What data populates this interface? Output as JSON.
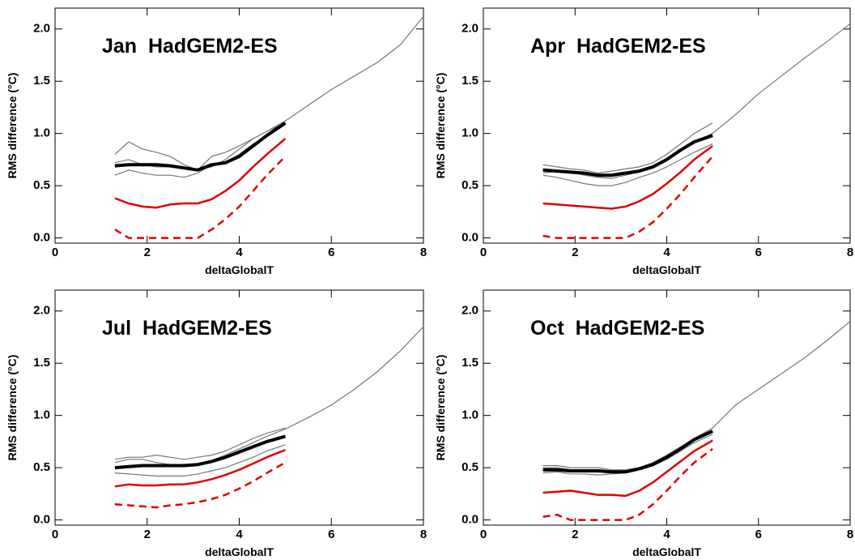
{
  "chart_data": [
    {
      "type": "line",
      "title": "Jan  HadGEM2-ES",
      "xlabel": "deltaGlobalT",
      "ylabel": "RMS difference (°C)",
      "xlim": [
        0,
        8
      ],
      "ylim": [
        -0.05,
        2.2
      ],
      "xticks": [
        0,
        2,
        4,
        6,
        8
      ],
      "yticks": [
        {
          "value": 0,
          "label": "0.0"
        },
        0.5,
        {
          "value": 1,
          "label": "1.0"
        },
        1.5,
        {
          "value": 2,
          "label": "2.0"
        }
      ],
      "x": [
        1.3,
        1.6,
        1.9,
        2.2,
        2.5,
        2.8,
        3.1,
        3.4,
        3.7,
        4.0,
        4.3,
        4.6,
        5.0,
        5.5,
        6.0,
        6.5,
        7.0,
        7.5,
        8.0
      ],
      "series": [
        {
          "color": "#777777",
          "linewidth": 1.2,
          "values": [
            0.72,
            0.75,
            0.7,
            0.68,
            0.68,
            0.66,
            0.65,
            0.68,
            0.75,
            0.85,
            0.95,
            1.02,
            1.12,
            1.27,
            1.42,
            1.55,
            1.68,
            1.85,
            2.12
          ]
        },
        {
          "color": "#777777",
          "linewidth": 1.2,
          "values": [
            0.8,
            0.92,
            0.85,
            0.82,
            0.78,
            0.7,
            0.65,
            0.78,
            0.82,
            0.88,
            0.95,
            1.02,
            1.1,
            null,
            null,
            null,
            null,
            null,
            null
          ]
        },
        {
          "color": "#777777",
          "linewidth": 1.2,
          "values": [
            0.6,
            0.65,
            0.62,
            0.6,
            0.6,
            0.58,
            0.62,
            0.7,
            0.72,
            0.8,
            0.9,
            0.98,
            1.1,
            null,
            null,
            null,
            null,
            null,
            null
          ]
        },
        {
          "color": "#000000",
          "linewidth": 4,
          "values": [
            0.69,
            0.7,
            0.7,
            0.7,
            0.69,
            0.67,
            0.65,
            0.7,
            0.72,
            0.78,
            0.88,
            0.98,
            1.1,
            null,
            null,
            null,
            null,
            null,
            null
          ]
        },
        {
          "color": "#e00000",
          "linewidth": 2.5,
          "values": [
            0.38,
            0.33,
            0.3,
            0.29,
            0.32,
            0.33,
            0.33,
            0.37,
            0.45,
            0.55,
            0.68,
            0.8,
            0.95,
            null,
            null,
            null,
            null,
            null,
            null
          ]
        },
        {
          "color": "#e00000",
          "linewidth": 2.5,
          "dashed": true,
          "values": [
            0.08,
            0,
            0,
            0,
            0,
            0,
            0,
            0.08,
            0.18,
            0.3,
            0.45,
            0.6,
            0.78,
            null,
            null,
            null,
            null,
            null,
            null
          ]
        }
      ]
    },
    {
      "type": "line",
      "title": "Apr  HadGEM2-ES",
      "xlabel": "deltaGlobalT",
      "ylabel": "RMS difference (°C)",
      "xlim": [
        0,
        8
      ],
      "ylim": [
        -0.05,
        2.2
      ],
      "xticks": [
        0,
        2,
        4,
        6,
        8
      ],
      "yticks": [
        {
          "value": 0,
          "label": "0.0"
        },
        0.5,
        {
          "value": 1,
          "label": "1.0"
        },
        1.5,
        {
          "value": 2,
          "label": "2.0"
        }
      ],
      "x": [
        1.3,
        1.6,
        1.9,
        2.2,
        2.5,
        2.8,
        3.1,
        3.4,
        3.7,
        4.0,
        4.3,
        4.6,
        5.0,
        5.5,
        6.0,
        6.5,
        7.0,
        7.5,
        8.0
      ],
      "series": [
        {
          "color": "#777777",
          "linewidth": 1.2,
          "values": [
            0.62,
            0.64,
            0.63,
            0.6,
            0.58,
            0.57,
            0.6,
            0.63,
            0.68,
            0.75,
            0.85,
            0.92,
            1.0,
            1.18,
            1.38,
            1.55,
            1.72,
            1.88,
            2.05
          ]
        },
        {
          "color": "#777777",
          "linewidth": 1.2,
          "values": [
            0.7,
            0.68,
            0.66,
            0.65,
            0.62,
            0.64,
            0.66,
            0.68,
            0.72,
            0.8,
            0.9,
            1.0,
            1.1,
            null,
            null,
            null,
            null,
            null,
            null
          ]
        },
        {
          "color": "#777777",
          "linewidth": 1.2,
          "values": [
            0.6,
            0.58,
            0.55,
            0.52,
            0.5,
            0.5,
            0.53,
            0.58,
            0.62,
            0.68,
            0.75,
            0.82,
            0.9,
            null,
            null,
            null,
            null,
            null,
            null
          ]
        },
        {
          "color": "#000000",
          "linewidth": 4,
          "values": [
            0.65,
            0.64,
            0.63,
            0.62,
            0.6,
            0.6,
            0.62,
            0.64,
            0.68,
            0.75,
            0.84,
            0.92,
            0.98,
            null,
            null,
            null,
            null,
            null,
            null
          ]
        },
        {
          "color": "#e00000",
          "linewidth": 2.5,
          "values": [
            0.33,
            0.32,
            0.31,
            0.3,
            0.29,
            0.28,
            0.3,
            0.35,
            0.42,
            0.52,
            0.63,
            0.75,
            0.88,
            null,
            null,
            null,
            null,
            null,
            null
          ]
        },
        {
          "color": "#e00000",
          "linewidth": 2.5,
          "dashed": true,
          "values": [
            0.02,
            0,
            0,
            0,
            0,
            0,
            0,
            0.06,
            0.15,
            0.28,
            0.42,
            0.58,
            0.78,
            null,
            null,
            null,
            null,
            null,
            null
          ]
        }
      ]
    },
    {
      "type": "line",
      "title": "Jul  HadGEM2-ES",
      "xlabel": "deltaGlobalT",
      "ylabel": "RMS difference (°C)",
      "xlim": [
        0,
        8
      ],
      "ylim": [
        -0.05,
        2.2
      ],
      "xticks": [
        0,
        2,
        4,
        6,
        8
      ],
      "yticks": [
        {
          "value": 0,
          "label": "0.0"
        },
        0.5,
        {
          "value": 1,
          "label": "1.0"
        },
        1.5,
        {
          "value": 2,
          "label": "2.0"
        }
      ],
      "x": [
        1.3,
        1.6,
        1.9,
        2.2,
        2.5,
        2.8,
        3.1,
        3.4,
        3.7,
        4.0,
        4.3,
        4.6,
        5.0,
        5.5,
        6.0,
        6.5,
        7.0,
        7.5,
        8.0
      ],
      "series": [
        {
          "color": "#777777",
          "linewidth": 1.2,
          "values": [
            0.55,
            0.58,
            0.58,
            0.55,
            0.53,
            0.52,
            0.53,
            0.57,
            0.62,
            0.68,
            0.74,
            0.8,
            0.87,
            0.98,
            1.1,
            1.25,
            1.42,
            1.62,
            1.85
          ]
        },
        {
          "color": "#777777",
          "linewidth": 1.2,
          "values": [
            0.58,
            0.6,
            0.6,
            0.62,
            0.6,
            0.58,
            0.6,
            0.62,
            0.66,
            0.72,
            0.78,
            0.83,
            0.88,
            null,
            null,
            null,
            null,
            null,
            null
          ]
        },
        {
          "color": "#777777",
          "linewidth": 1.2,
          "values": [
            0.45,
            0.44,
            0.43,
            0.42,
            0.42,
            0.42,
            0.44,
            0.47,
            0.5,
            0.55,
            0.6,
            0.66,
            0.72,
            null,
            null,
            null,
            null,
            null,
            null
          ]
        },
        {
          "color": "#000000",
          "linewidth": 4,
          "values": [
            0.5,
            0.51,
            0.52,
            0.52,
            0.52,
            0.52,
            0.53,
            0.56,
            0.6,
            0.65,
            0.7,
            0.75,
            0.8,
            null,
            null,
            null,
            null,
            null,
            null
          ]
        },
        {
          "color": "#e00000",
          "linewidth": 2.5,
          "values": [
            0.32,
            0.34,
            0.33,
            0.33,
            0.34,
            0.34,
            0.36,
            0.39,
            0.43,
            0.48,
            0.54,
            0.6,
            0.67,
            null,
            null,
            null,
            null,
            null,
            null
          ]
        },
        {
          "color": "#e00000",
          "linewidth": 2.5,
          "dashed": true,
          "values": [
            0.15,
            0.14,
            0.13,
            0.12,
            0.14,
            0.15,
            0.17,
            0.2,
            0.24,
            0.3,
            0.37,
            0.45,
            0.55,
            null,
            null,
            null,
            null,
            null,
            null
          ]
        }
      ]
    },
    {
      "type": "line",
      "title": "Oct  HadGEM2-ES",
      "xlabel": "deltaGlobalT",
      "ylabel": "RMS difference (°C)",
      "xlim": [
        0,
        8
      ],
      "ylim": [
        -0.05,
        2.2
      ],
      "xticks": [
        0,
        2,
        4,
        6,
        8
      ],
      "yticks": [
        {
          "value": 0,
          "label": "0.0"
        },
        0.5,
        {
          "value": 1,
          "label": "1.0"
        },
        1.5,
        {
          "value": 2,
          "label": "2.0"
        }
      ],
      "x": [
        1.3,
        1.6,
        1.9,
        2.2,
        2.5,
        2.8,
        3.1,
        3.4,
        3.7,
        4.0,
        4.3,
        4.6,
        5.0,
        5.5,
        6.0,
        6.5,
        7.0,
        7.5,
        8.0
      ],
      "series": [
        {
          "color": "#777777",
          "linewidth": 1.2,
          "values": [
            0.5,
            0.5,
            0.48,
            0.48,
            0.48,
            0.47,
            0.47,
            0.5,
            0.55,
            0.62,
            0.7,
            0.78,
            0.88,
            1.1,
            1.25,
            1.4,
            1.55,
            1.72,
            1.9
          ]
        },
        {
          "color": "#777777",
          "linewidth": 1.2,
          "values": [
            0.45,
            0.46,
            0.44,
            0.44,
            0.43,
            0.44,
            0.45,
            0.48,
            0.52,
            0.58,
            0.66,
            0.74,
            0.82,
            null,
            null,
            null,
            null,
            null,
            null
          ]
        },
        {
          "color": "#777777",
          "linewidth": 1.2,
          "values": [
            0.52,
            0.52,
            0.5,
            0.5,
            0.5,
            0.48,
            0.48,
            0.5,
            0.52,
            0.6,
            0.68,
            0.76,
            0.85,
            null,
            null,
            null,
            null,
            null,
            null
          ]
        },
        {
          "color": "#000000",
          "linewidth": 4,
          "values": [
            0.48,
            0.48,
            0.47,
            0.47,
            0.47,
            0.46,
            0.46,
            0.49,
            0.53,
            0.6,
            0.68,
            0.77,
            0.85,
            null,
            null,
            null,
            null,
            null,
            null
          ]
        },
        {
          "color": "#e00000",
          "linewidth": 2.5,
          "values": [
            0.26,
            0.27,
            0.28,
            0.26,
            0.24,
            0.24,
            0.23,
            0.28,
            0.36,
            0.46,
            0.56,
            0.66,
            0.76,
            null,
            null,
            null,
            null,
            null,
            null
          ]
        },
        {
          "color": "#e00000",
          "linewidth": 2.5,
          "dashed": true,
          "values": [
            0.03,
            0.05,
            0,
            0,
            0,
            0,
            0,
            0.05,
            0.15,
            0.28,
            0.42,
            0.55,
            0.68,
            null,
            null,
            null,
            null,
            null,
            null
          ]
        }
      ]
    }
  ]
}
